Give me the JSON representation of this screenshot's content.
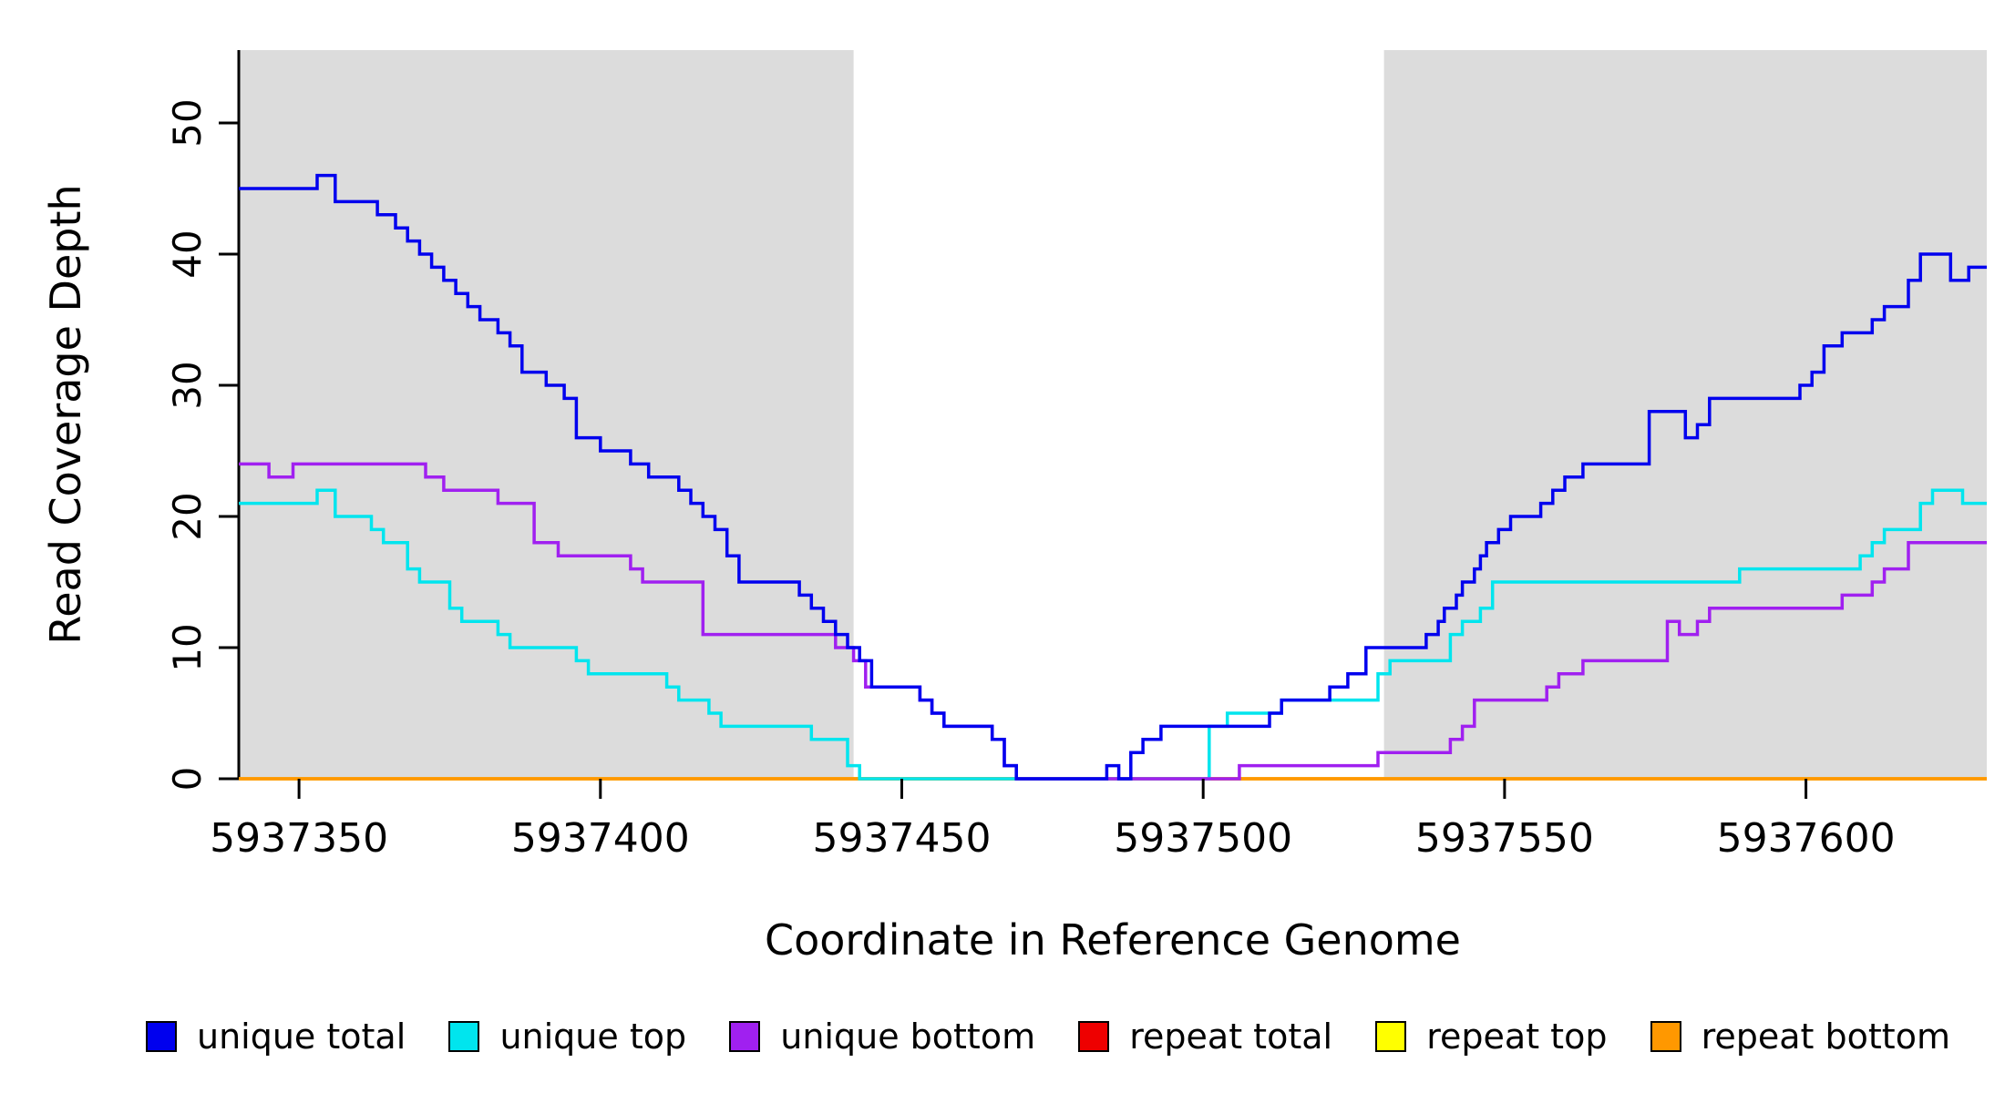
{
  "figure": {
    "background": "#ffffff"
  },
  "chart_data": {
    "type": "line",
    "subtype": "step",
    "title": "",
    "xlabel": "Coordinate in Reference Genome",
    "ylabel": "Read Coverage Depth",
    "x_range": [
      5937340,
      5937630
    ],
    "ylim": [
      0,
      50
    ],
    "x_ticks": [
      5937350,
      5937400,
      5937450,
      5937500,
      5937550,
      5937600
    ],
    "y_ticks": [
      0,
      10,
      20,
      30,
      40,
      50
    ],
    "grid": false,
    "legend_position": "bottom",
    "shaded_regions": [
      {
        "x_start": 5937340,
        "x_end": 5937442,
        "color": "#DCDCDC"
      },
      {
        "x_start": 5937530,
        "x_end": 5937630,
        "color": "#DCDCDC"
      }
    ],
    "series": [
      {
        "name": "repeat total",
        "color": "#EE0000",
        "points": [
          [
            5937340,
            0
          ]
        ]
      },
      {
        "name": "repeat top",
        "color": "#FFFF00",
        "points": [
          [
            5937340,
            0
          ]
        ]
      },
      {
        "name": "repeat bottom",
        "color": "#FF9800",
        "points": [
          [
            5937340,
            0
          ]
        ]
      },
      {
        "name": "unique top",
        "color": "#00E5EE",
        "points": [
          [
            5937340,
            21
          ],
          [
            5937353,
            22
          ],
          [
            5937356,
            20
          ],
          [
            5937362,
            19
          ],
          [
            5937364,
            18
          ],
          [
            5937368,
            16
          ],
          [
            5937370,
            15
          ],
          [
            5937375,
            13
          ],
          [
            5937377,
            12
          ],
          [
            5937383,
            11
          ],
          [
            5937385,
            10
          ],
          [
            5937396,
            9
          ],
          [
            5937398,
            8
          ],
          [
            5937411,
            7
          ],
          [
            5937413,
            6
          ],
          [
            5937418,
            5
          ],
          [
            5937420,
            4
          ],
          [
            5937435,
            3
          ],
          [
            5937441,
            1
          ],
          [
            5937443,
            0
          ],
          [
            5937501,
            4
          ],
          [
            5937504,
            5
          ],
          [
            5937513,
            6
          ],
          [
            5937529,
            8
          ],
          [
            5937531,
            9
          ],
          [
            5937541,
            11
          ],
          [
            5937543,
            12
          ],
          [
            5937546,
            13
          ],
          [
            5937548,
            15
          ],
          [
            5937589,
            16
          ],
          [
            5937609,
            17
          ],
          [
            5937611,
            18
          ],
          [
            5937613,
            19
          ],
          [
            5937619,
            21
          ],
          [
            5937621,
            22
          ],
          [
            5937626,
            21
          ]
        ]
      },
      {
        "name": "unique bottom",
        "color": "#A020F0",
        "points": [
          [
            5937340,
            24
          ],
          [
            5937345,
            23
          ],
          [
            5937349,
            24
          ],
          [
            5937371,
            23
          ],
          [
            5937374,
            22
          ],
          [
            5937383,
            21
          ],
          [
            5937389,
            18
          ],
          [
            5937393,
            17
          ],
          [
            5937405,
            16
          ],
          [
            5937407,
            15
          ],
          [
            5937417,
            11
          ],
          [
            5937439,
            10
          ],
          [
            5937442,
            9
          ],
          [
            5937444,
            7
          ],
          [
            5937453,
            6
          ],
          [
            5937455,
            5
          ],
          [
            5937457,
            4
          ],
          [
            5937465,
            3
          ],
          [
            5937467,
            1
          ],
          [
            5937469,
            0
          ],
          [
            5937506,
            1
          ],
          [
            5937529,
            2
          ],
          [
            5937541,
            3
          ],
          [
            5937543,
            4
          ],
          [
            5937545,
            6
          ],
          [
            5937557,
            7
          ],
          [
            5937559,
            8
          ],
          [
            5937563,
            9
          ],
          [
            5937577,
            12
          ],
          [
            5937579,
            11
          ],
          [
            5937582,
            12
          ],
          [
            5937584,
            13
          ],
          [
            5937606,
            14
          ],
          [
            5937611,
            15
          ],
          [
            5937613,
            16
          ],
          [
            5937617,
            18
          ]
        ]
      },
      {
        "name": "unique total",
        "color": "#0000EE",
        "points": [
          [
            5937340,
            45
          ],
          [
            5937353,
            46
          ],
          [
            5937356,
            44
          ],
          [
            5937363,
            43
          ],
          [
            5937366,
            42
          ],
          [
            5937368,
            41
          ],
          [
            5937370,
            40
          ],
          [
            5937372,
            39
          ],
          [
            5937374,
            38
          ],
          [
            5937376,
            37
          ],
          [
            5937378,
            36
          ],
          [
            5937380,
            35
          ],
          [
            5937383,
            34
          ],
          [
            5937385,
            33
          ],
          [
            5937387,
            31
          ],
          [
            5937391,
            30
          ],
          [
            5937394,
            29
          ],
          [
            5937396,
            26
          ],
          [
            5937400,
            25
          ],
          [
            5937405,
            24
          ],
          [
            5937408,
            23
          ],
          [
            5937413,
            22
          ],
          [
            5937415,
            21
          ],
          [
            5937417,
            20
          ],
          [
            5937419,
            19
          ],
          [
            5937421,
            17
          ],
          [
            5937423,
            15
          ],
          [
            5937433,
            14
          ],
          [
            5937435,
            13
          ],
          [
            5937437,
            12
          ],
          [
            5937439,
            11
          ],
          [
            5937441,
            10
          ],
          [
            5937443,
            9
          ],
          [
            5937445,
            7
          ],
          [
            5937453,
            6
          ],
          [
            5937455,
            5
          ],
          [
            5937457,
            4
          ],
          [
            5937465,
            3
          ],
          [
            5937467,
            1
          ],
          [
            5937469,
            0
          ],
          [
            5937484,
            1
          ],
          [
            5937486,
            0
          ],
          [
            5937488,
            2
          ],
          [
            5937490,
            3
          ],
          [
            5937493,
            4
          ],
          [
            5937511,
            5
          ],
          [
            5937513,
            6
          ],
          [
            5937521,
            7
          ],
          [
            5937524,
            8
          ],
          [
            5937527,
            10
          ],
          [
            5937537,
            11
          ],
          [
            5937539,
            12
          ],
          [
            5937540,
            13
          ],
          [
            5937542,
            14
          ],
          [
            5937543,
            15
          ],
          [
            5937545,
            16
          ],
          [
            5937546,
            17
          ],
          [
            5937547,
            18
          ],
          [
            5937549,
            19
          ],
          [
            5937551,
            20
          ],
          [
            5937556,
            21
          ],
          [
            5937558,
            22
          ],
          [
            5937560,
            23
          ],
          [
            5937563,
            24
          ],
          [
            5937574,
            28
          ],
          [
            5937580,
            26
          ],
          [
            5937582,
            27
          ],
          [
            5937584,
            29
          ],
          [
            5937599,
            30
          ],
          [
            5937601,
            31
          ],
          [
            5937603,
            33
          ],
          [
            5937606,
            34
          ],
          [
            5937611,
            35
          ],
          [
            5937613,
            36
          ],
          [
            5937617,
            38
          ],
          [
            5937619,
            40
          ],
          [
            5937624,
            38
          ],
          [
            5937627,
            39
          ]
        ]
      }
    ]
  },
  "legend": {
    "items": [
      {
        "label": "unique total",
        "color": "#0000EE"
      },
      {
        "label": "unique top",
        "color": "#00E5EE"
      },
      {
        "label": "unique bottom",
        "color": "#A020F0"
      },
      {
        "label": "repeat total",
        "color": "#EE0000"
      },
      {
        "label": "repeat top",
        "color": "#FFFF00"
      },
      {
        "label": "repeat bottom",
        "color": "#FF9800"
      }
    ]
  }
}
